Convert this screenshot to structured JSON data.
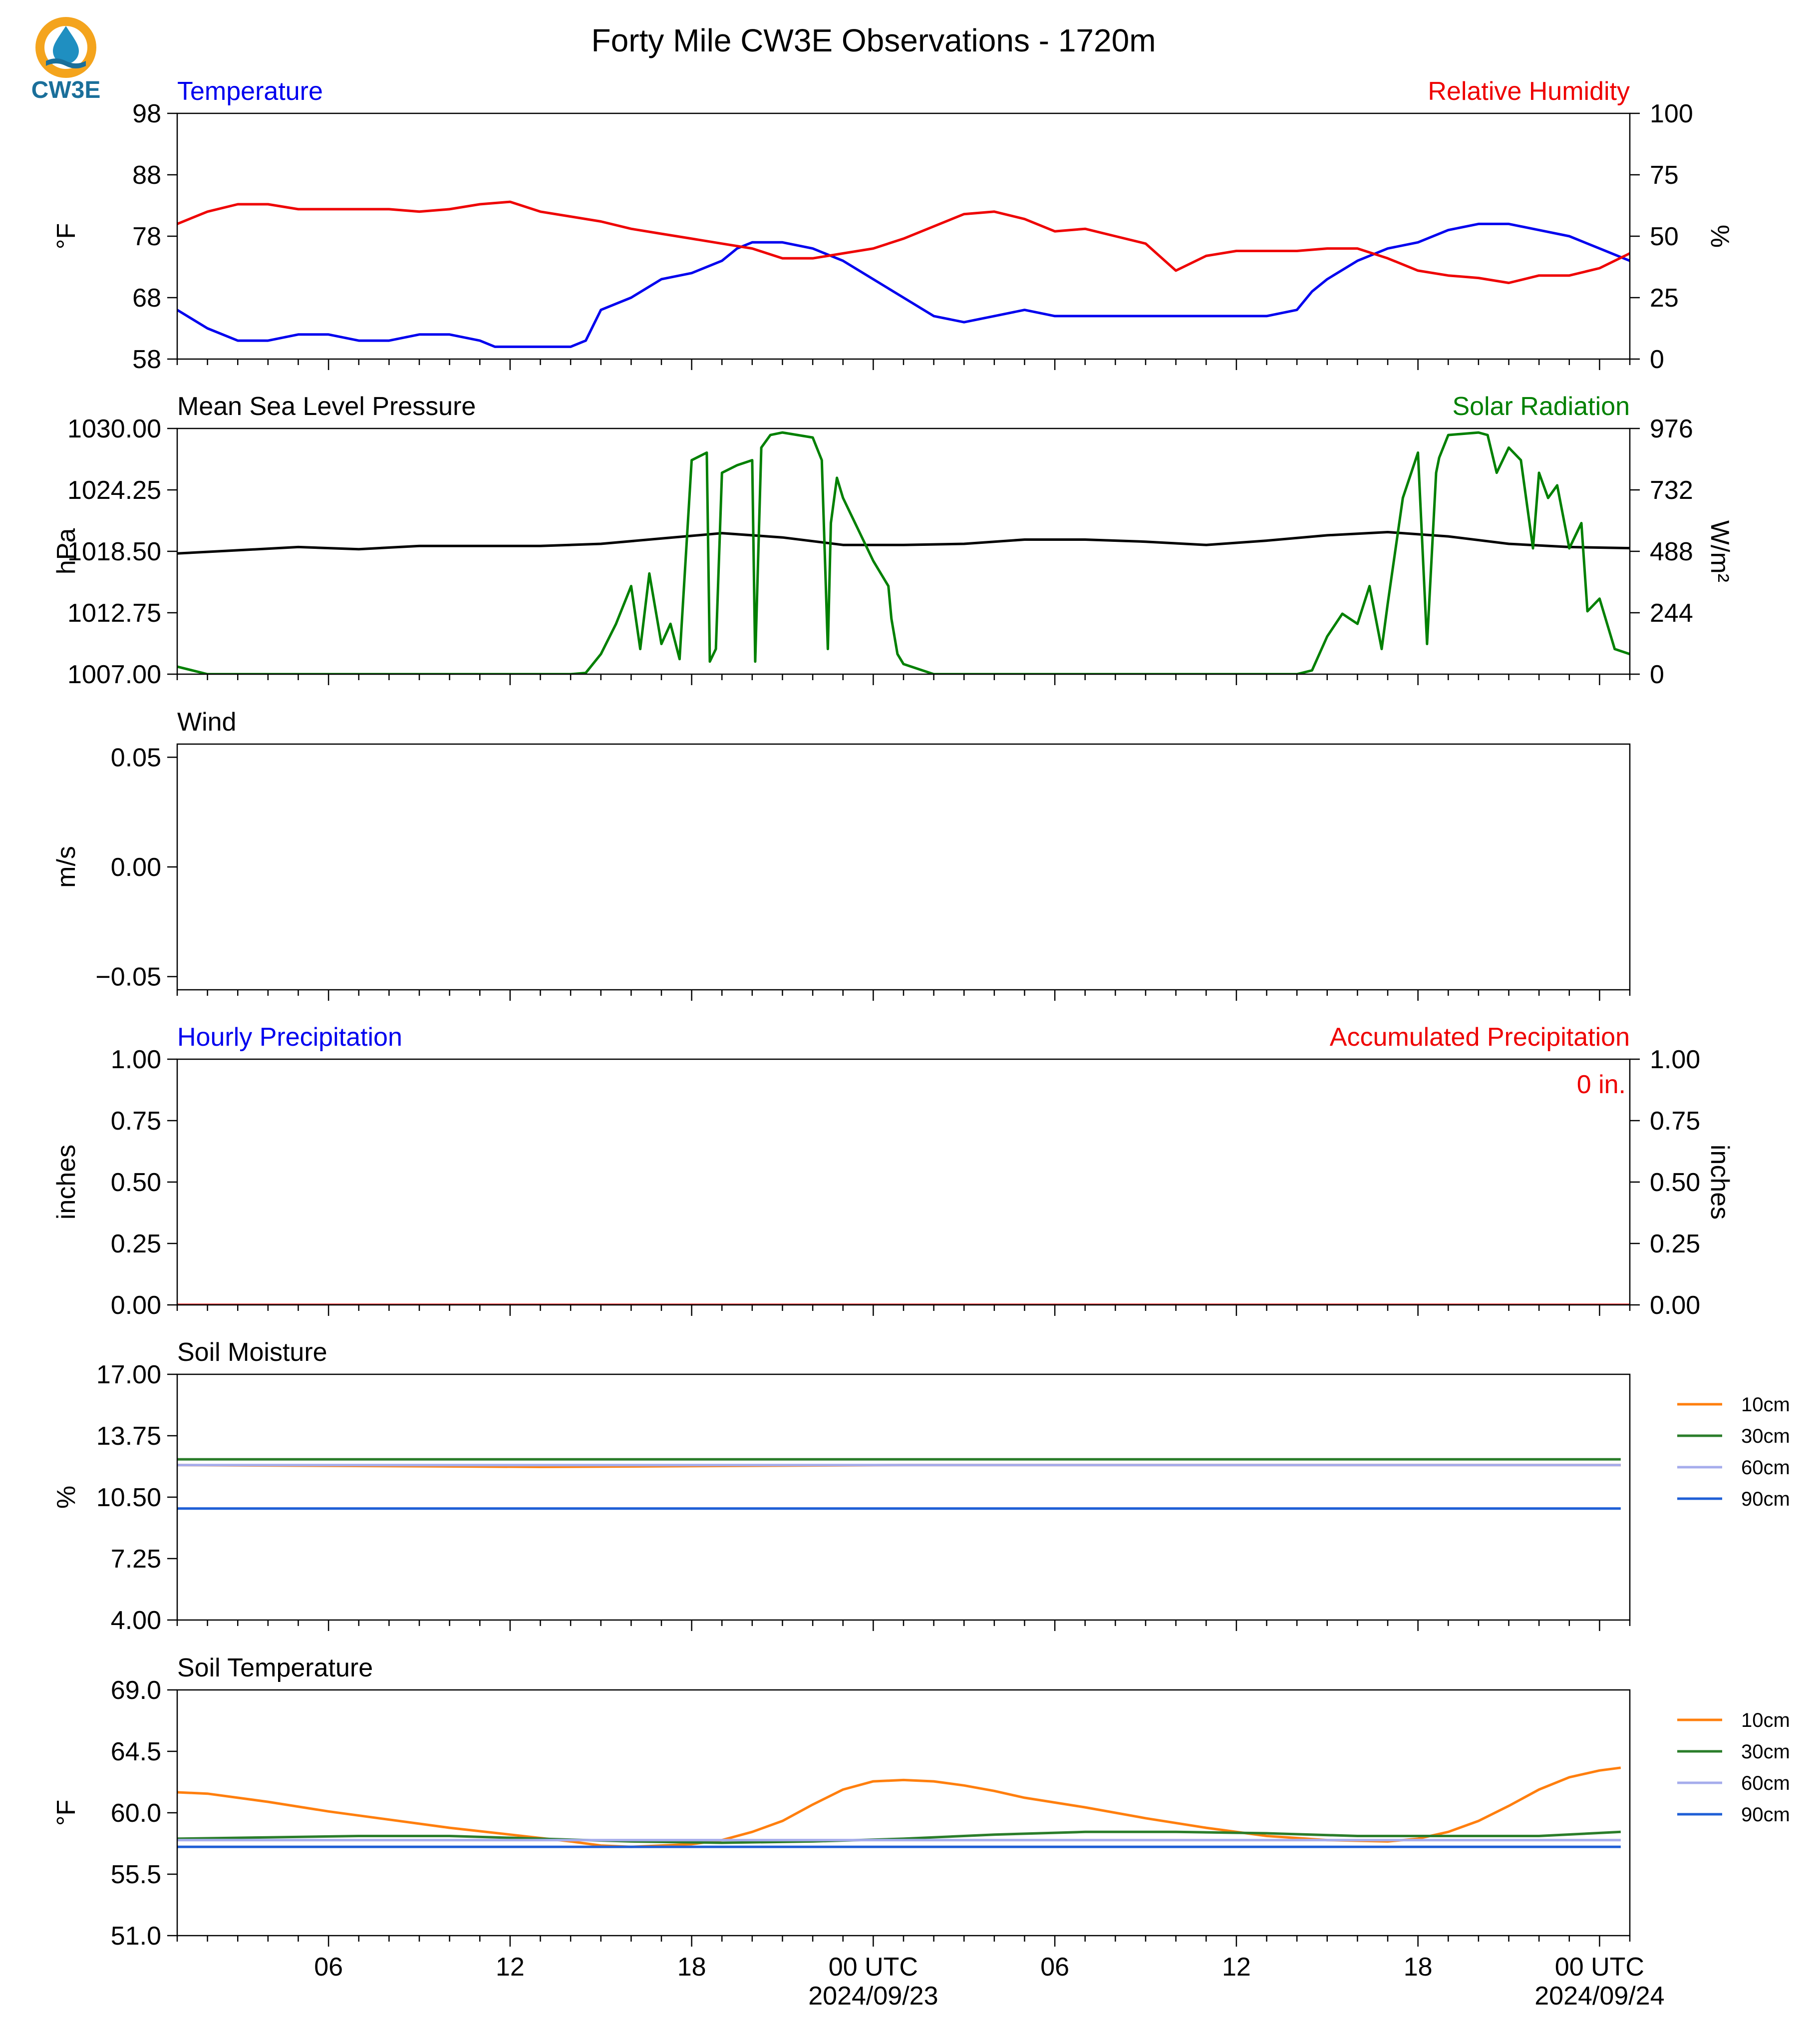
{
  "title": "Forty Mile CW3E Observations - 1720m",
  "logo": {
    "text": "CW3E",
    "icon": "cw3e-droplet-logo",
    "colors": {
      "ring": "#f4a41d",
      "drop": "#1f8fc1",
      "waves": "#1a6f9a"
    }
  },
  "time_axis": {
    "x_range_hours": [
      0,
      48
    ],
    "tick_hours": [
      5,
      11,
      17,
      23,
      29,
      35,
      41,
      47
    ],
    "tick_labels": [
      "06",
      "12",
      "18",
      "00 UTC",
      "06",
      "12",
      "18",
      "00 UTC"
    ],
    "date_labels": [
      {
        "hour": 23,
        "text": "2024/09/23"
      },
      {
        "hour": 47,
        "text": "2024/09/24"
      }
    ]
  },
  "chart_data": [
    {
      "type": "line",
      "left_title": "Temperature",
      "right_title": "Relative Humidity",
      "left_title_color": "#0000ee",
      "right_title_color": "#ee0000",
      "ylabel": "°F",
      "ylabel_right": "%",
      "ylim": [
        58,
        98
      ],
      "yticks": [
        "58",
        "68",
        "78",
        "88",
        "98"
      ],
      "ylim_right": [
        0,
        100
      ],
      "yticks_right": [
        "0",
        "25",
        "50",
        "75",
        "100"
      ],
      "series": [
        {
          "name": "Temperature",
          "color": "#0000ee",
          "axis": "left",
          "x": [
            0,
            1,
            2,
            3,
            4,
            5,
            6,
            7,
            8,
            9,
            10,
            10.5,
            11,
            12,
            13,
            13.5,
            14,
            15,
            16,
            17,
            18,
            18.5,
            19,
            20,
            21,
            22,
            23,
            24,
            25,
            26,
            27,
            28,
            29,
            30,
            31,
            32,
            33,
            34,
            35,
            36,
            37,
            37.5,
            38,
            39,
            40,
            41,
            42,
            43,
            44,
            45,
            46,
            47,
            48
          ],
          "y": [
            66,
            63,
            61,
            61,
            62,
            62,
            61,
            61,
            62,
            62,
            61,
            60,
            60,
            60,
            60,
            61,
            66,
            68,
            71,
            72,
            74,
            76,
            77,
            77,
            76,
            74,
            71,
            68,
            65,
            64,
            65,
            66,
            65,
            65,
            65,
            65,
            65,
            65,
            65,
            65,
            66,
            69,
            71,
            74,
            76,
            77,
            79,
            80,
            80,
            79,
            78,
            76,
            74
          ]
        },
        {
          "name": "Relative Humidity",
          "color": "#ee0000",
          "axis": "right",
          "x": [
            0,
            1,
            2,
            3,
            4,
            5,
            6,
            7,
            8,
            9,
            10,
            11,
            12,
            13,
            14,
            15,
            16,
            17,
            18,
            19,
            20,
            21,
            22,
            23,
            24,
            25,
            26,
            27,
            28,
            29,
            30,
            31,
            32,
            33,
            34,
            35,
            36,
            37,
            38,
            39,
            40,
            41,
            42,
            43,
            44,
            45,
            46,
            47,
            48
          ],
          "y": [
            55,
            60,
            63,
            63,
            61,
            61,
            61,
            61,
            60,
            61,
            63,
            64,
            60,
            58,
            56,
            53,
            51,
            49,
            47,
            45,
            41,
            41,
            43,
            45,
            49,
            54,
            59,
            60,
            57,
            52,
            53,
            50,
            47,
            36,
            42,
            44,
            44,
            44,
            45,
            45,
            41,
            36,
            34,
            33,
            31,
            34,
            34,
            37,
            43
          ]
        }
      ]
    },
    {
      "type": "line",
      "left_title": "Mean Sea Level Pressure",
      "right_title": "Solar Radiation",
      "left_title_color": "#000000",
      "right_title_color": "#008000",
      "ylabel": "hPa",
      "ylabel_right": "W/m²",
      "ylim": [
        1007.0,
        1030.0
      ],
      "yticks": [
        "1007.00",
        "1012.75",
        "1018.50",
        "1024.25",
        "1030.00"
      ],
      "ylim_right": [
        0,
        976
      ],
      "yticks_right": [
        "0",
        "244",
        "488",
        "732",
        "976"
      ],
      "series": [
        {
          "name": "Mean Sea Level Pressure",
          "color": "#000000",
          "axis": "left",
          "x": [
            0,
            2,
            4,
            6,
            8,
            10,
            12,
            14,
            16,
            18,
            20,
            22,
            24,
            26,
            28,
            30,
            32,
            34,
            36,
            38,
            40,
            42,
            44,
            46,
            48
          ],
          "y": [
            1018.3,
            1018.6,
            1018.9,
            1018.7,
            1019.0,
            1019.0,
            1019.0,
            1019.2,
            1019.7,
            1020.2,
            1019.8,
            1019.1,
            1019.1,
            1019.2,
            1019.6,
            1019.6,
            1019.4,
            1019.1,
            1019.5,
            1020.0,
            1020.3,
            1019.9,
            1019.2,
            1018.9,
            1018.8
          ]
        },
        {
          "name": "Solar Radiation",
          "color": "#008000",
          "axis": "right",
          "x": [
            0,
            1,
            13,
            13.5,
            14,
            14.5,
            15,
            15.3,
            15.6,
            16,
            16.3,
            16.6,
            17,
            17.5,
            17.6,
            17.8,
            18,
            18.5,
            19,
            19.1,
            19.3,
            19.6,
            20,
            21,
            21.3,
            21.5,
            21.6,
            21.8,
            22,
            23,
            23.5,
            23.6,
            23.8,
            24,
            25,
            26,
            37,
            37.5,
            38,
            38.5,
            39,
            39.4,
            39.8,
            40,
            40.5,
            41,
            41.3,
            41.6,
            41.7,
            42,
            43,
            43.3,
            43.6,
            44,
            44.4,
            44.8,
            45,
            45.3,
            45.6,
            46,
            46.4,
            46.6,
            47,
            47.5,
            48
          ],
          "y": [
            30,
            0,
            0,
            5,
            80,
            200,
            350,
            100,
            400,
            120,
            200,
            60,
            850,
            880,
            50,
            100,
            800,
            830,
            850,
            50,
            900,
            950,
            960,
            940,
            850,
            100,
            600,
            780,
            700,
            450,
            350,
            220,
            80,
            40,
            0,
            0,
            0,
            15,
            150,
            240,
            200,
            350,
            100,
            280,
            700,
            880,
            120,
            800,
            860,
            950,
            960,
            950,
            800,
            900,
            850,
            500,
            800,
            700,
            750,
            500,
            600,
            250,
            300,
            100,
            80
          ]
        }
      ]
    },
    {
      "type": "line",
      "left_title": "Wind",
      "left_title_color": "#000000",
      "ylabel": "m/s",
      "ylim": [
        -0.056,
        0.056
      ],
      "yticks": [
        "−0.05",
        "0.00",
        "0.05"
      ],
      "ytick_values": [
        -0.05,
        0.0,
        0.05
      ],
      "series": []
    },
    {
      "type": "line",
      "left_title": "Hourly Precipitation",
      "right_title": "Accumulated Precipitation",
      "left_title_color": "#0000ee",
      "right_title_color": "#ee0000",
      "ylabel": "inches",
      "ylabel_right": "inches",
      "ylim": [
        0,
        1
      ],
      "yticks": [
        "0.00",
        "0.25",
        "0.50",
        "0.75",
        "1.00"
      ],
      "ylim_right": [
        0,
        1
      ],
      "yticks_right": [
        "0.00",
        "0.25",
        "0.50",
        "0.75",
        "1.00"
      ],
      "annotation": "0 in.",
      "annotation_color": "#ee0000",
      "series": [
        {
          "name": "Accumulated Precipitation",
          "color": "#ee0000",
          "axis": "right",
          "x": [
            0,
            48
          ],
          "y": [
            0,
            0
          ]
        }
      ]
    },
    {
      "type": "line",
      "left_title": "Soil Moisture",
      "left_title_color": "#000000",
      "ylabel": "%",
      "ylim": [
        4,
        17
      ],
      "yticks": [
        "4.00",
        "7.25",
        "10.50",
        "13.75",
        "17.00"
      ],
      "legend": "right-outside",
      "series": [
        {
          "name": "10cm",
          "color": "#ff7f0e",
          "x": [
            0,
            12,
            24,
            36,
            47.7
          ],
          "y": [
            12.2,
            12.1,
            12.2,
            12.2,
            12.2
          ]
        },
        {
          "name": "30cm",
          "color": "#2a7d2a",
          "x": [
            0,
            12,
            24,
            36,
            47.7
          ],
          "y": [
            12.5,
            12.5,
            12.5,
            12.5,
            12.5
          ]
        },
        {
          "name": "60cm",
          "color": "#a6acec",
          "x": [
            0,
            12,
            24,
            36,
            47.7
          ],
          "y": [
            12.2,
            12.2,
            12.2,
            12.2,
            12.2
          ]
        },
        {
          "name": "90cm",
          "color": "#1f5fd6",
          "x": [
            0,
            12,
            24,
            36,
            47.7
          ],
          "y": [
            9.9,
            9.9,
            9.9,
            9.9,
            9.9
          ]
        }
      ]
    },
    {
      "type": "line",
      "left_title": "Soil Temperature",
      "left_title_color": "#000000",
      "ylabel": "°F",
      "ylim": [
        51,
        69
      ],
      "yticks": [
        "51.0",
        "55.5",
        "60.0",
        "64.5",
        "69.0"
      ],
      "legend": "right-outside",
      "series": [
        {
          "name": "10cm",
          "color": "#ff7f0e",
          "x": [
            0,
            1,
            3,
            5,
            7,
            9,
            11,
            13,
            14,
            15,
            16,
            17,
            18,
            19,
            20,
            21,
            22,
            23,
            24,
            25,
            26,
            27,
            28,
            30,
            32,
            34,
            36,
            38,
            40,
            41,
            42,
            43,
            44,
            45,
            46,
            47,
            47.7
          ],
          "y": [
            61.5,
            61.4,
            60.8,
            60.1,
            59.5,
            58.9,
            58.4,
            57.9,
            57.6,
            57.5,
            57.6,
            57.7,
            58.0,
            58.6,
            59.4,
            60.6,
            61.7,
            62.3,
            62.4,
            62.3,
            62.0,
            61.6,
            61.1,
            60.4,
            59.6,
            58.9,
            58.3,
            58.0,
            57.9,
            58.1,
            58.6,
            59.4,
            60.5,
            61.7,
            62.6,
            63.1,
            63.3
          ]
        },
        {
          "name": "30cm",
          "color": "#2a7d2a",
          "x": [
            0,
            3,
            6,
            9,
            12,
            15,
            18,
            21,
            24,
            27,
            30,
            33,
            36,
            39,
            42,
            45,
            47.7
          ],
          "y": [
            58.1,
            58.2,
            58.3,
            58.3,
            58.1,
            57.9,
            57.8,
            57.9,
            58.1,
            58.4,
            58.6,
            58.6,
            58.5,
            58.3,
            58.3,
            58.3,
            58.6
          ]
        },
        {
          "name": "60cm",
          "color": "#a6acec",
          "x": [
            0,
            12,
            24,
            36,
            47.7
          ],
          "y": [
            58.0,
            58.0,
            58.0,
            58.0,
            58.0
          ]
        },
        {
          "name": "90cm",
          "color": "#1f5fd6",
          "x": [
            0,
            12,
            24,
            36,
            47.7
          ],
          "y": [
            57.5,
            57.5,
            57.5,
            57.5,
            57.5
          ]
        }
      ]
    }
  ]
}
